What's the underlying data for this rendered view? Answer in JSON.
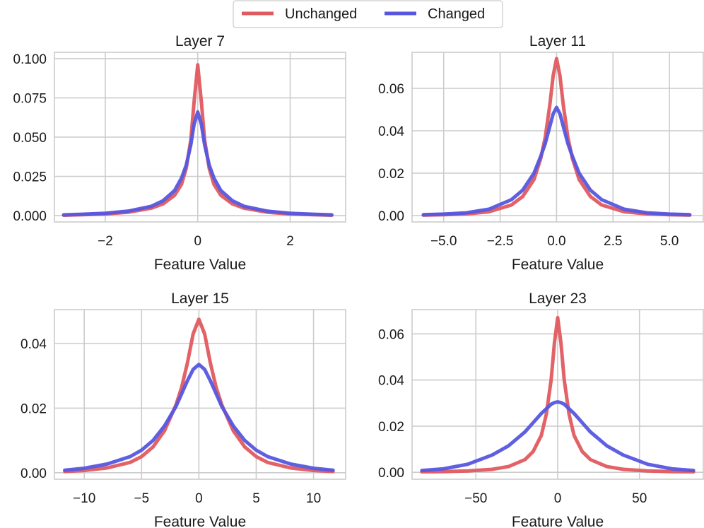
{
  "legend": {
    "items": [
      {
        "label": "Unchanged",
        "color": "#e05a5f"
      },
      {
        "label": "Changed",
        "color": "#5656e0"
      }
    ],
    "placement": "top-center"
  },
  "chart_data": [
    {
      "type": "line",
      "title": "Layer 7",
      "xlabel": "Feature Value",
      "ylabel": "",
      "xlim": [
        -3.1,
        3.2
      ],
      "ylim": [
        -0.004,
        0.104
      ],
      "xticks": [
        -2,
        0,
        2
      ],
      "xtick_labels": [
        "−2",
        "0",
        "2"
      ],
      "yticks": [
        0.0,
        0.025,
        0.05,
        0.075,
        0.1
      ],
      "ytick_labels": [
        "0.000",
        "0.025",
        "0.050",
        "0.075",
        "0.100"
      ],
      "grid": true,
      "series": [
        {
          "name": "Unchanged",
          "color": "#e05a5f",
          "x": [
            -2.9,
            -2.5,
            -2.0,
            -1.5,
            -1.0,
            -0.75,
            -0.5,
            -0.35,
            -0.25,
            -0.15,
            -0.08,
            0.0,
            0.08,
            0.15,
            0.25,
            0.35,
            0.5,
            0.75,
            1.0,
            1.5,
            2.0,
            2.5,
            2.9
          ],
          "y": [
            0.0003,
            0.0006,
            0.0011,
            0.0022,
            0.0048,
            0.0075,
            0.013,
            0.02,
            0.03,
            0.048,
            0.072,
            0.096,
            0.072,
            0.048,
            0.03,
            0.02,
            0.013,
            0.0075,
            0.0048,
            0.0022,
            0.0011,
            0.0006,
            0.0003
          ]
        },
        {
          "name": "Changed",
          "color": "#5656e0",
          "x": [
            -2.9,
            -2.5,
            -2.0,
            -1.5,
            -1.0,
            -0.75,
            -0.5,
            -0.35,
            -0.25,
            -0.15,
            -0.08,
            0.0,
            0.08,
            0.15,
            0.25,
            0.35,
            0.5,
            0.75,
            1.0,
            1.5,
            2.0,
            2.5,
            2.9
          ],
          "y": [
            0.0005,
            0.0009,
            0.0015,
            0.0029,
            0.006,
            0.0095,
            0.016,
            0.024,
            0.032,
            0.045,
            0.058,
            0.066,
            0.058,
            0.045,
            0.032,
            0.024,
            0.016,
            0.0095,
            0.006,
            0.0029,
            0.0015,
            0.0009,
            0.0005
          ]
        }
      ]
    },
    {
      "type": "line",
      "title": "Layer 11",
      "xlabel": "Feature Value",
      "ylabel": "",
      "xlim": [
        -6.4,
        6.5
      ],
      "ylim": [
        -0.003,
        0.077
      ],
      "xticks": [
        -5.0,
        -2.5,
        0.0,
        2.5,
        5.0
      ],
      "xtick_labels": [
        "−5.0",
        "−2.5",
        "0.0",
        "2.5",
        "5.0"
      ],
      "yticks": [
        0.0,
        0.02,
        0.04,
        0.06
      ],
      "ytick_labels": [
        "0.00",
        "0.02",
        "0.04",
        "0.06"
      ],
      "grid": true,
      "series": [
        {
          "name": "Unchanged",
          "color": "#e05a5f",
          "x": [
            -5.9,
            -5.0,
            -4.0,
            -3.0,
            -2.0,
            -1.5,
            -1.0,
            -0.7,
            -0.5,
            -0.3,
            -0.15,
            0.0,
            0.15,
            0.3,
            0.5,
            0.7,
            1.0,
            1.5,
            2.0,
            3.0,
            4.0,
            5.0,
            5.9
          ],
          "y": [
            0.0002,
            0.0004,
            0.0008,
            0.0018,
            0.005,
            0.009,
            0.017,
            0.027,
            0.037,
            0.052,
            0.066,
            0.074,
            0.066,
            0.052,
            0.037,
            0.027,
            0.017,
            0.009,
            0.005,
            0.0018,
            0.0008,
            0.0004,
            0.0002
          ]
        },
        {
          "name": "Changed",
          "color": "#5656e0",
          "x": [
            -5.9,
            -5.0,
            -4.0,
            -3.0,
            -2.0,
            -1.5,
            -1.0,
            -0.7,
            -0.5,
            -0.3,
            -0.15,
            0.0,
            0.15,
            0.3,
            0.5,
            0.7,
            1.0,
            1.5,
            2.0,
            3.0,
            4.0,
            5.0,
            5.9
          ],
          "y": [
            0.0004,
            0.0007,
            0.0013,
            0.003,
            0.0075,
            0.012,
            0.02,
            0.028,
            0.034,
            0.042,
            0.048,
            0.051,
            0.048,
            0.042,
            0.034,
            0.028,
            0.02,
            0.012,
            0.0075,
            0.003,
            0.0013,
            0.0007,
            0.0004
          ]
        }
      ]
    },
    {
      "type": "line",
      "title": "Layer 15",
      "xlabel": "Feature Value",
      "ylabel": "",
      "xlim": [
        -12.6,
        12.8
      ],
      "ylim": [
        -0.002,
        0.0505
      ],
      "xticks": [
        -10,
        -5,
        0,
        5,
        10
      ],
      "xtick_labels": [
        "−10",
        "−5",
        "0",
        "5",
        "10"
      ],
      "yticks": [
        0.0,
        0.02,
        0.04
      ],
      "ytick_labels": [
        "0.00",
        "0.02",
        "0.04"
      ],
      "grid": true,
      "series": [
        {
          "name": "Unchanged",
          "color": "#e05a5f",
          "x": [
            -11.7,
            -10,
            -8,
            -6,
            -5,
            -4,
            -3,
            -2,
            -1.5,
            -1,
            -0.5,
            0,
            0.5,
            1,
            1.5,
            2,
            3,
            4,
            5,
            6,
            8,
            10,
            11.7
          ],
          "y": [
            0.0004,
            0.0007,
            0.0015,
            0.0032,
            0.005,
            0.008,
            0.013,
            0.021,
            0.0265,
            0.034,
            0.043,
            0.0475,
            0.043,
            0.034,
            0.0265,
            0.021,
            0.013,
            0.008,
            0.005,
            0.0032,
            0.0015,
            0.0007,
            0.0004
          ]
        },
        {
          "name": "Changed",
          "color": "#5656e0",
          "x": [
            -11.7,
            -10,
            -8,
            -6,
            -5,
            -4,
            -3,
            -2,
            -1.5,
            -1,
            -0.5,
            0,
            0.5,
            1,
            1.5,
            2,
            3,
            4,
            5,
            6,
            8,
            10,
            11.7
          ],
          "y": [
            0.0008,
            0.0014,
            0.0027,
            0.005,
            0.007,
            0.01,
            0.0145,
            0.0205,
            0.0245,
            0.0285,
            0.032,
            0.0335,
            0.032,
            0.0285,
            0.0245,
            0.0205,
            0.0145,
            0.01,
            0.007,
            0.005,
            0.0027,
            0.0014,
            0.0008
          ]
        }
      ]
    },
    {
      "type": "line",
      "title": "Layer 23",
      "xlabel": "Feature Value",
      "ylabel": "",
      "xlim": [
        -89,
        89
      ],
      "ylim": [
        -0.003,
        0.0705
      ],
      "xticks": [
        -50,
        0,
        50
      ],
      "xtick_labels": [
        "−50",
        "0",
        "50"
      ],
      "yticks": [
        0.0,
        0.02,
        0.04,
        0.06
      ],
      "ytick_labels": [
        "0.00",
        "0.02",
        "0.04",
        "0.06"
      ],
      "grid": true,
      "series": [
        {
          "name": "Unchanged",
          "color": "#e05a5f",
          "x": [
            -83,
            -70,
            -55,
            -40,
            -30,
            -20,
            -15,
            -10,
            -7,
            -4,
            -2,
            0,
            2,
            4,
            7,
            10,
            15,
            20,
            30,
            40,
            55,
            70,
            83
          ],
          "y": [
            0.0002,
            0.0003,
            0.0006,
            0.0013,
            0.0025,
            0.0055,
            0.009,
            0.016,
            0.025,
            0.04,
            0.056,
            0.067,
            0.056,
            0.04,
            0.025,
            0.016,
            0.009,
            0.0055,
            0.0025,
            0.0013,
            0.0006,
            0.0003,
            0.0002
          ]
        },
        {
          "name": "Changed",
          "color": "#5656e0",
          "x": [
            -83,
            -70,
            -55,
            -40,
            -30,
            -20,
            -15,
            -10,
            -7,
            -4,
            -2,
            0,
            2,
            4,
            7,
            10,
            15,
            20,
            30,
            40,
            55,
            70,
            83
          ],
          "y": [
            0.0008,
            0.0015,
            0.0035,
            0.0075,
            0.0115,
            0.0175,
            0.0215,
            0.0255,
            0.0275,
            0.0295,
            0.0302,
            0.0305,
            0.0302,
            0.0295,
            0.0275,
            0.0255,
            0.0215,
            0.0175,
            0.0115,
            0.0075,
            0.0035,
            0.0015,
            0.0008
          ]
        }
      ]
    }
  ]
}
